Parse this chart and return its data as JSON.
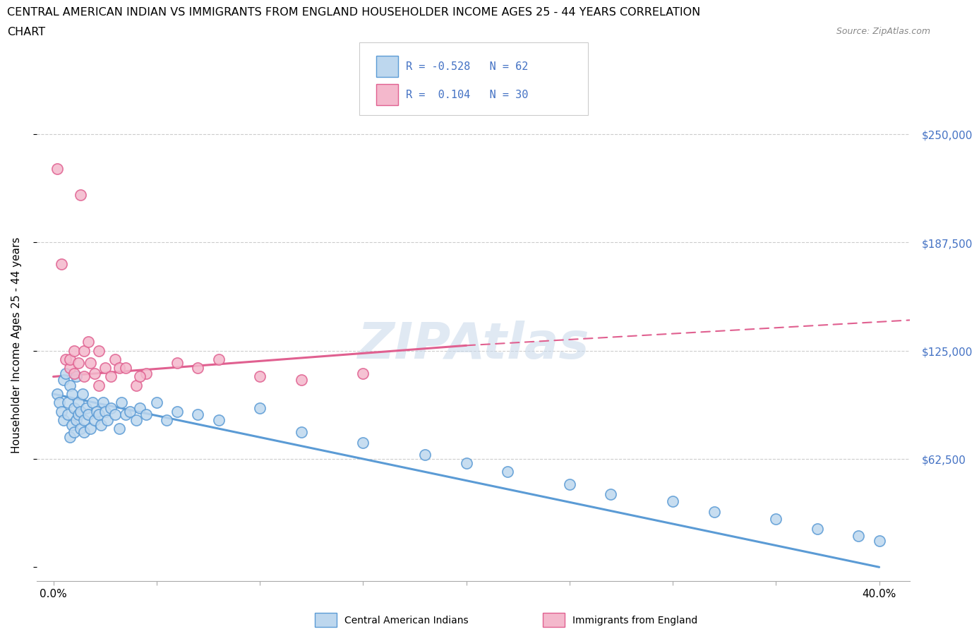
{
  "title_line1": "CENTRAL AMERICAN INDIAN VS IMMIGRANTS FROM ENGLAND HOUSEHOLDER INCOME AGES 25 - 44 YEARS CORRELATION",
  "title_line2": "CHART",
  "source_text": "Source: ZipAtlas.com",
  "ylabel": "Householder Income Ages 25 - 44 years",
  "ytick_vals": [
    0,
    62500,
    125000,
    187500,
    250000
  ],
  "ytick_labels": [
    "",
    "$62,500",
    "$125,000",
    "$187,500",
    "$250,000"
  ],
  "xtick_vals": [
    0.0,
    0.05,
    0.1,
    0.15,
    0.2,
    0.25,
    0.3,
    0.35,
    0.4
  ],
  "xtick_labels": [
    "0.0%",
    "",
    "",
    "",
    "",
    "",
    "",
    "",
    "40.0%"
  ],
  "blue_color": "#5B9BD5",
  "pink_color": "#E06090",
  "blue_fill": "#BDD7EE",
  "pink_fill": "#F4B8CC",
  "blue_scatter_x": [
    0.002,
    0.003,
    0.004,
    0.005,
    0.005,
    0.006,
    0.007,
    0.007,
    0.008,
    0.008,
    0.009,
    0.009,
    0.01,
    0.01,
    0.011,
    0.011,
    0.012,
    0.012,
    0.013,
    0.013,
    0.014,
    0.015,
    0.015,
    0.016,
    0.017,
    0.018,
    0.019,
    0.02,
    0.021,
    0.022,
    0.023,
    0.024,
    0.025,
    0.026,
    0.028,
    0.03,
    0.032,
    0.033,
    0.035,
    0.037,
    0.04,
    0.042,
    0.045,
    0.05,
    0.055,
    0.06,
    0.07,
    0.08,
    0.1,
    0.12,
    0.15,
    0.18,
    0.2,
    0.22,
    0.25,
    0.27,
    0.3,
    0.32,
    0.35,
    0.37,
    0.39,
    0.4
  ],
  "blue_scatter_y": [
    100000,
    95000,
    90000,
    108000,
    85000,
    112000,
    88000,
    95000,
    75000,
    105000,
    82000,
    100000,
    78000,
    92000,
    85000,
    110000,
    88000,
    95000,
    80000,
    90000,
    100000,
    85000,
    78000,
    92000,
    88000,
    80000,
    95000,
    85000,
    90000,
    88000,
    82000,
    95000,
    90000,
    85000,
    92000,
    88000,
    80000,
    95000,
    88000,
    90000,
    85000,
    92000,
    88000,
    95000,
    85000,
    90000,
    88000,
    85000,
    92000,
    78000,
    72000,
    65000,
    60000,
    55000,
    48000,
    42000,
    38000,
    32000,
    28000,
    22000,
    18000,
    15000
  ],
  "pink_scatter_x": [
    0.002,
    0.004,
    0.006,
    0.008,
    0.008,
    0.01,
    0.01,
    0.012,
    0.013,
    0.015,
    0.015,
    0.017,
    0.018,
    0.02,
    0.022,
    0.022,
    0.025,
    0.028,
    0.03,
    0.032,
    0.04,
    0.045,
    0.06,
    0.07,
    0.1,
    0.12,
    0.15,
    0.08,
    0.035,
    0.042
  ],
  "pink_scatter_y": [
    230000,
    175000,
    120000,
    115000,
    120000,
    112000,
    125000,
    118000,
    215000,
    110000,
    125000,
    130000,
    118000,
    112000,
    105000,
    125000,
    115000,
    110000,
    120000,
    115000,
    105000,
    112000,
    118000,
    115000,
    110000,
    108000,
    112000,
    120000,
    115000,
    110000
  ]
}
